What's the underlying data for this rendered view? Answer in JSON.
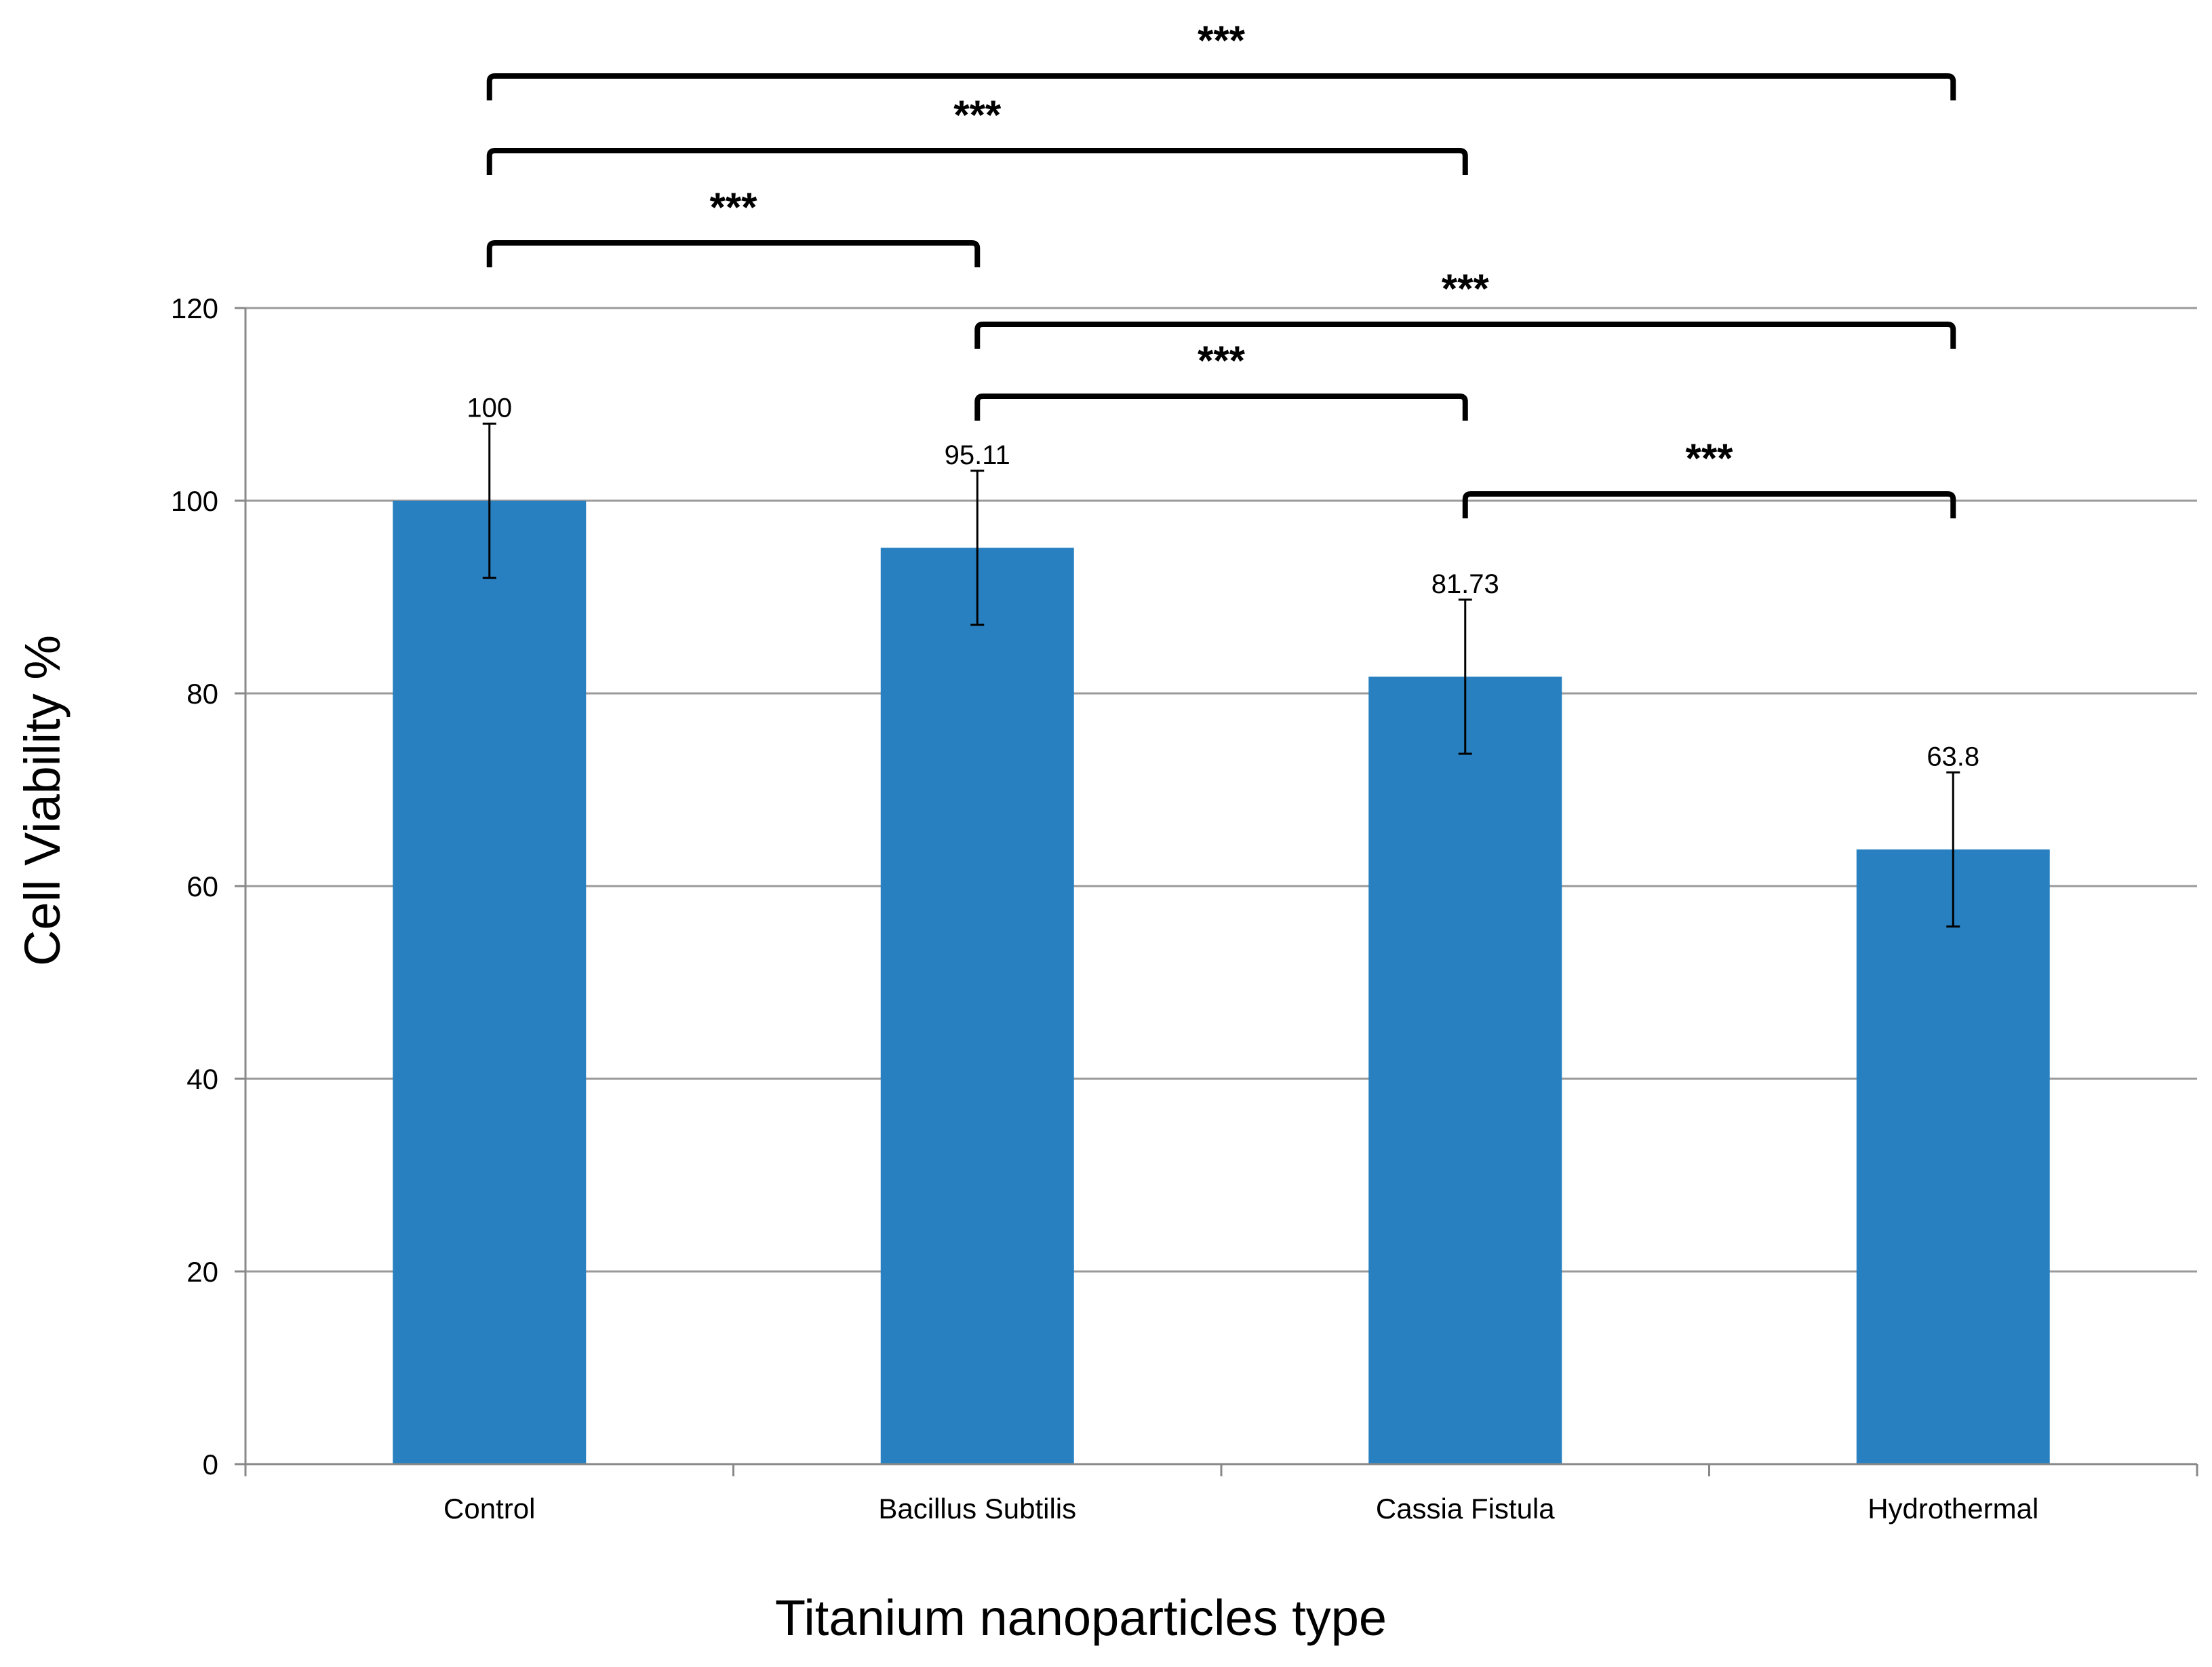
{
  "chart_data": {
    "type": "bar",
    "title": "",
    "xlabel": "Titanium nanoparticles type",
    "ylabel": "Cell Viability %",
    "categories": [
      "Control",
      "Bacillus Subtilis",
      "Cassia Fistula",
      "Hydrothermal"
    ],
    "values": [
      100,
      95.11,
      81.73,
      63.8
    ],
    "data_labels": [
      "100",
      "95.11",
      "81.73",
      "63.8"
    ],
    "error_bars": [
      8,
      8,
      8,
      8
    ],
    "ylim": [
      0,
      120
    ],
    "yticks": [
      0,
      20,
      40,
      60,
      80,
      100,
      120
    ],
    "grid": true,
    "bar_color": "#2880C0",
    "significance": [
      {
        "from": 0,
        "to": 3,
        "label": "***"
      },
      {
        "from": 0,
        "to": 2,
        "label": "***"
      },
      {
        "from": 0,
        "to": 1,
        "label": "***"
      },
      {
        "from": 1,
        "to": 3,
        "label": "***"
      },
      {
        "from": 1,
        "to": 2,
        "label": "***"
      },
      {
        "from": 2,
        "to": 3,
        "label": "***"
      }
    ]
  }
}
